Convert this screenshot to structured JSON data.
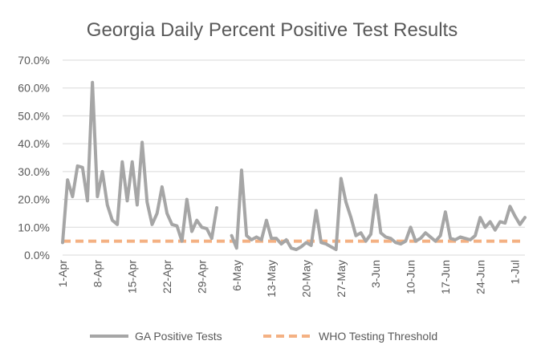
{
  "chart_data": {
    "type": "line",
    "title": "Georgia Daily Percent Positive Test Results",
    "xlabel": "",
    "ylabel": "",
    "ylim": [
      0,
      70
    ],
    "y_ticks": [
      "0.0%",
      "10.0%",
      "20.0%",
      "30.0%",
      "40.0%",
      "50.0%",
      "60.0%",
      "70.0%"
    ],
    "y_tick_values": [
      0,
      10,
      20,
      30,
      40,
      50,
      60,
      70
    ],
    "x_ticks": [
      "1-Apr",
      "8-Apr",
      "15-Apr",
      "22-Apr",
      "29-Apr",
      "6-May",
      "13-May",
      "20-May",
      "27-May",
      "3-Jun",
      "10-Jun",
      "17-Jun",
      "24-Jun",
      "1-Jul"
    ],
    "x_start": "1-Apr",
    "x_end": "5-Jul",
    "grid": true,
    "legend_position": "bottom",
    "series": [
      {
        "name": "GA Positive Tests",
        "color": "#a6a6a6",
        "style": "solid",
        "values": [
          4.5,
          27,
          21,
          32,
          31.5,
          19.5,
          62,
          21,
          30,
          18,
          12.5,
          11,
          33.5,
          19.5,
          33.5,
          18,
          40.5,
          19,
          11,
          15,
          24.5,
          15,
          11,
          10.5,
          5,
          20,
          8.5,
          12.5,
          10,
          9.5,
          6,
          17,
          null,
          null,
          7,
          2.5,
          30.5,
          7,
          5.5,
          6.5,
          5.5,
          12.5,
          6,
          6,
          4,
          5.5,
          2.5,
          2,
          3,
          4.5,
          3.5,
          16,
          4.5,
          4,
          3,
          2,
          27.5,
          19,
          13.5,
          7,
          8,
          5,
          7.5,
          21.5,
          8,
          6.5,
          6,
          4.5,
          4,
          5,
          10,
          5,
          6,
          8,
          6.5,
          5,
          7,
          15.5,
          6,
          5.5,
          6.5,
          6,
          5.5,
          7,
          13.5,
          10,
          12,
          9,
          12,
          11.5,
          17.5,
          14,
          11,
          13.5
        ]
      },
      {
        "name": "WHO Testing Threshold",
        "color": "#f4b183",
        "style": "dashed",
        "values": [
          5
        ]
      }
    ]
  }
}
